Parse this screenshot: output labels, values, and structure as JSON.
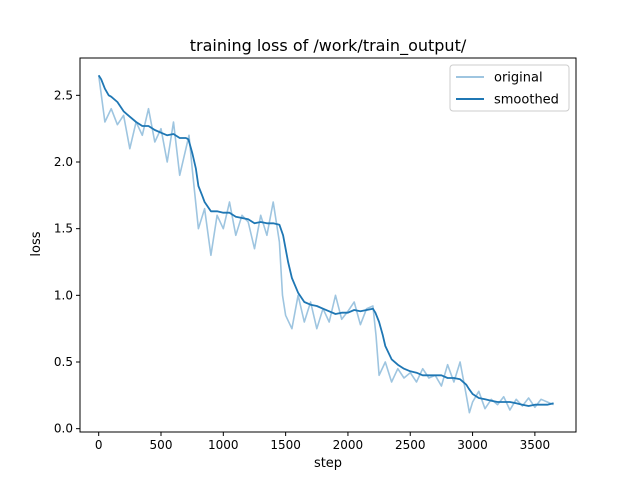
{
  "chart_data": {
    "type": "line",
    "title": "training loss of /work/train_output/",
    "xlabel": "step",
    "ylabel": "loss",
    "xlim": [
      -150,
      3830
    ],
    "ylim": [
      -0.025,
      2.78
    ],
    "xticks": [
      0,
      500,
      1000,
      1500,
      2000,
      2500,
      3000,
      3500
    ],
    "yticks": [
      0.0,
      0.5,
      1.0,
      1.5,
      2.0,
      2.5
    ],
    "xtick_labels": [
      "0",
      "500",
      "1000",
      "1500",
      "2000",
      "2500",
      "3000",
      "3500"
    ],
    "ytick_labels": [
      "0.0",
      "0.5",
      "1.0",
      "1.5",
      "2.0",
      "2.5"
    ],
    "grid": false,
    "legend": {
      "position": "top-right"
    },
    "series": [
      {
        "name": "original",
        "color": "#9ec5e0",
        "x": [
          0,
          50,
          100,
          150,
          200,
          250,
          300,
          350,
          400,
          450,
          500,
          550,
          600,
          650,
          700,
          725,
          750,
          800,
          850,
          900,
          950,
          1000,
          1050,
          1100,
          1150,
          1200,
          1250,
          1300,
          1350,
          1400,
          1450,
          1475,
          1500,
          1550,
          1600,
          1650,
          1700,
          1750,
          1800,
          1850,
          1900,
          1950,
          2000,
          2050,
          2100,
          2150,
          2200,
          2225,
          2250,
          2300,
          2350,
          2400,
          2450,
          2500,
          2550,
          2600,
          2650,
          2700,
          2750,
          2800,
          2850,
          2900,
          2950,
          2975,
          3000,
          3050,
          3100,
          3150,
          3200,
          3250,
          3300,
          3350,
          3400,
          3450,
          3500,
          3550,
          3600,
          3650
        ],
        "y": [
          2.65,
          2.3,
          2.4,
          2.28,
          2.35,
          2.1,
          2.3,
          2.2,
          2.4,
          2.15,
          2.25,
          2.0,
          2.3,
          1.9,
          2.1,
          2.2,
          1.95,
          1.5,
          1.65,
          1.3,
          1.6,
          1.5,
          1.7,
          1.45,
          1.6,
          1.55,
          1.35,
          1.6,
          1.45,
          1.7,
          1.4,
          1.0,
          0.85,
          0.75,
          1.0,
          0.8,
          0.95,
          0.75,
          0.9,
          0.8,
          1.0,
          0.82,
          0.88,
          0.95,
          0.78,
          0.9,
          0.92,
          0.7,
          0.4,
          0.5,
          0.35,
          0.45,
          0.38,
          0.42,
          0.35,
          0.45,
          0.38,
          0.4,
          0.32,
          0.48,
          0.35,
          0.5,
          0.25,
          0.12,
          0.2,
          0.28,
          0.15,
          0.22,
          0.18,
          0.24,
          0.14,
          0.22,
          0.17,
          0.23,
          0.16,
          0.22,
          0.2,
          0.18
        ]
      },
      {
        "name": "smoothed",
        "color": "#1f77b4",
        "x": [
          0,
          20,
          50,
          80,
          100,
          150,
          200,
          250,
          300,
          350,
          400,
          450,
          500,
          550,
          600,
          650,
          700,
          720,
          750,
          780,
          800,
          830,
          850,
          900,
          950,
          1000,
          1050,
          1100,
          1150,
          1200,
          1250,
          1300,
          1350,
          1400,
          1450,
          1480,
          1500,
          1520,
          1550,
          1600,
          1650,
          1700,
          1750,
          1800,
          1850,
          1900,
          1950,
          2000,
          2050,
          2100,
          2150,
          2200,
          2220,
          2250,
          2280,
          2300,
          2350,
          2400,
          2450,
          2500,
          2550,
          2600,
          2650,
          2700,
          2750,
          2800,
          2850,
          2900,
          2950,
          2970,
          3000,
          3050,
          3100,
          3150,
          3200,
          3250,
          3300,
          3350,
          3400,
          3450,
          3500,
          3550,
          3600,
          3650
        ],
        "y": [
          2.65,
          2.62,
          2.55,
          2.5,
          2.49,
          2.45,
          2.38,
          2.34,
          2.3,
          2.27,
          2.27,
          2.24,
          2.22,
          2.2,
          2.21,
          2.18,
          2.18,
          2.17,
          2.07,
          1.95,
          1.82,
          1.75,
          1.7,
          1.63,
          1.63,
          1.62,
          1.62,
          1.59,
          1.58,
          1.57,
          1.54,
          1.55,
          1.54,
          1.54,
          1.53,
          1.45,
          1.35,
          1.25,
          1.13,
          1.02,
          0.95,
          0.93,
          0.92,
          0.9,
          0.88,
          0.86,
          0.87,
          0.87,
          0.89,
          0.88,
          0.89,
          0.9,
          0.87,
          0.8,
          0.7,
          0.62,
          0.52,
          0.48,
          0.45,
          0.43,
          0.42,
          0.4,
          0.4,
          0.4,
          0.4,
          0.38,
          0.38,
          0.37,
          0.33,
          0.3,
          0.26,
          0.23,
          0.22,
          0.21,
          0.2,
          0.2,
          0.2,
          0.19,
          0.18,
          0.17,
          0.18,
          0.18,
          0.18,
          0.19
        ]
      }
    ]
  }
}
